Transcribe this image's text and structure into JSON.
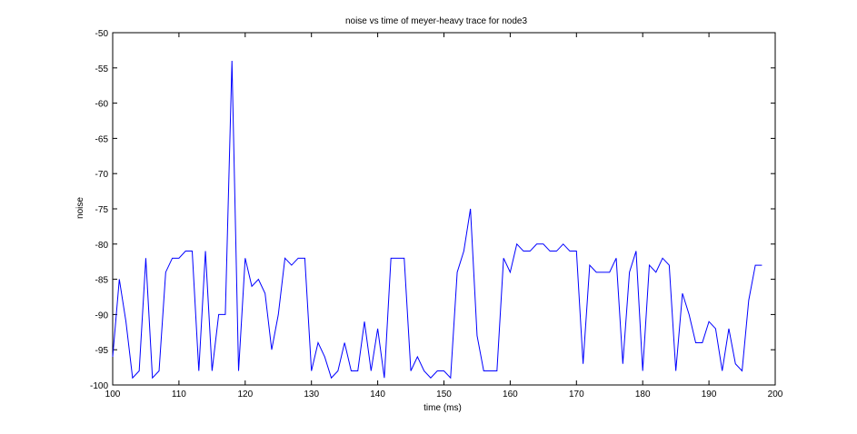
{
  "chart_data": {
    "type": "line",
    "title": "noise vs time of meyer-heavy trace for node3",
    "xlabel": "time (ms)",
    "ylabel": "noise",
    "xlim": [
      100,
      200
    ],
    "ylim": [
      -100,
      -50
    ],
    "xticks": [
      100,
      110,
      120,
      130,
      140,
      150,
      160,
      170,
      180,
      190,
      200
    ],
    "yticks": [
      -50,
      -55,
      -60,
      -65,
      -70,
      -75,
      -80,
      -85,
      -90,
      -95,
      -100
    ],
    "grid": false,
    "line_color": "#0000ff",
    "series": [
      {
        "x": [
          100,
          101,
          102,
          103,
          104,
          105,
          106,
          107,
          108,
          109,
          110,
          111,
          112,
          113,
          114,
          115,
          116,
          117,
          118,
          119,
          120,
          121,
          122,
          123,
          124,
          125,
          126,
          127,
          128,
          129,
          130,
          131,
          132,
          133,
          134,
          135,
          136,
          137,
          138,
          139,
          140,
          141,
          142,
          143,
          144,
          145,
          146,
          147,
          148,
          149,
          150,
          151,
          152,
          153,
          154,
          155,
          156,
          157,
          158,
          159,
          160,
          161,
          162,
          163,
          164,
          165,
          166,
          167,
          168,
          169,
          170,
          171,
          172,
          173,
          174,
          175,
          176,
          177,
          178,
          179,
          180,
          181,
          182,
          183,
          184,
          185,
          186,
          187,
          188,
          189,
          190,
          191,
          192,
          193,
          194,
          195,
          196,
          197,
          198
        ],
        "y": [
          -96,
          -85,
          -91,
          -99,
          -98,
          -82,
          -99,
          -98,
          -84,
          -82,
          -82,
          -81,
          -81,
          -98,
          -81,
          -98,
          -90,
          -90,
          -54,
          -98,
          -82,
          -86,
          -85,
          -87,
          -95,
          -90,
          -82,
          -83,
          -82,
          -82,
          -98,
          -94,
          -96,
          -99,
          -98,
          -94,
          -98,
          -98,
          -91,
          -98,
          -92,
          -99,
          -82,
          -82,
          -82,
          -98,
          -96,
          -98,
          -99,
          -98,
          -98,
          -99,
          -84,
          -81,
          -75,
          -93,
          -98,
          -98,
          -98,
          -82,
          -84,
          -80,
          -81,
          -81,
          -80,
          -80,
          -81,
          -81,
          -80,
          -81,
          -81,
          -97,
          -83,
          -84,
          -84,
          -84,
          -82,
          -97,
          -84,
          -81,
          -98,
          -83,
          -84,
          -82,
          -83,
          -98,
          -87,
          -90,
          -94,
          -94,
          -91,
          -92,
          -98,
          -92,
          -97,
          -98,
          -88,
          -83,
          -83
        ]
      }
    ]
  }
}
